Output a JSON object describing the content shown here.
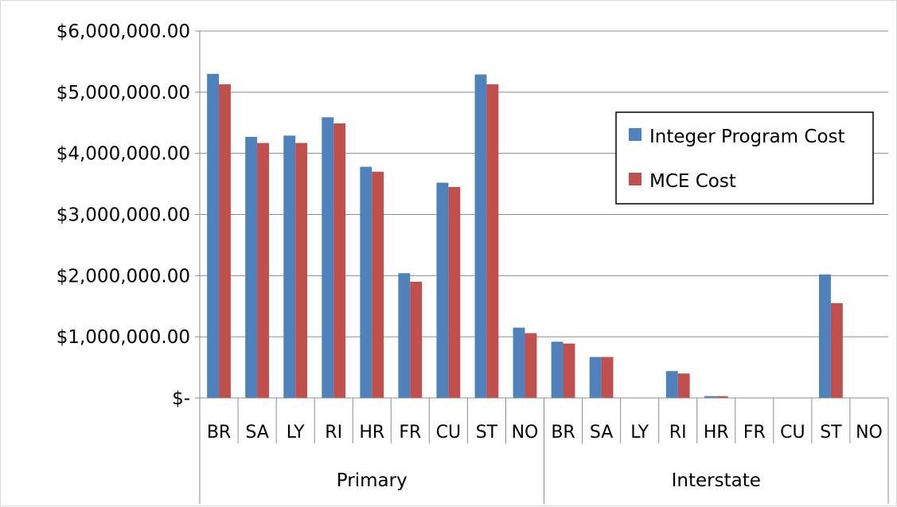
{
  "chart_data": {
    "type": "bar",
    "title": "",
    "xlabel": "",
    "ylabel": "",
    "ylim": [
      0,
      6000000
    ],
    "y_ticks": [
      0,
      1000000,
      2000000,
      3000000,
      4000000,
      5000000,
      6000000
    ],
    "y_tick_labels": [
      "$-",
      "$1,000,000.00",
      "$2,000,000.00",
      "$3,000,000.00",
      "$4,000,000.00",
      "$5,000,000.00",
      "$6,000,000.00"
    ],
    "grid": true,
    "legend_position": "right",
    "groups": [
      {
        "label": "Primary",
        "categories": [
          "BR",
          "SA",
          "LY",
          "RI",
          "HR",
          "FR",
          "CU",
          "ST",
          "NO"
        ]
      },
      {
        "label": "Interstate",
        "categories": [
          "BR",
          "SA",
          "LY",
          "RI",
          "HR",
          "FR",
          "CU",
          "ST",
          "NO"
        ]
      }
    ],
    "series": [
      {
        "name": "Integer Program Cost",
        "color": "#4F81BD",
        "values": [
          5300000,
          4270000,
          4290000,
          4590000,
          3780000,
          2040000,
          3520000,
          5290000,
          1150000,
          920000,
          670000,
          0,
          440000,
          30000,
          0,
          0,
          2020000,
          0
        ]
      },
      {
        "name": "MCE Cost",
        "color": "#C0504D",
        "values": [
          5130000,
          4170000,
          4170000,
          4490000,
          3700000,
          1900000,
          3450000,
          5130000,
          1060000,
          890000,
          670000,
          0,
          400000,
          30000,
          0,
          0,
          1550000,
          0
        ]
      }
    ]
  }
}
